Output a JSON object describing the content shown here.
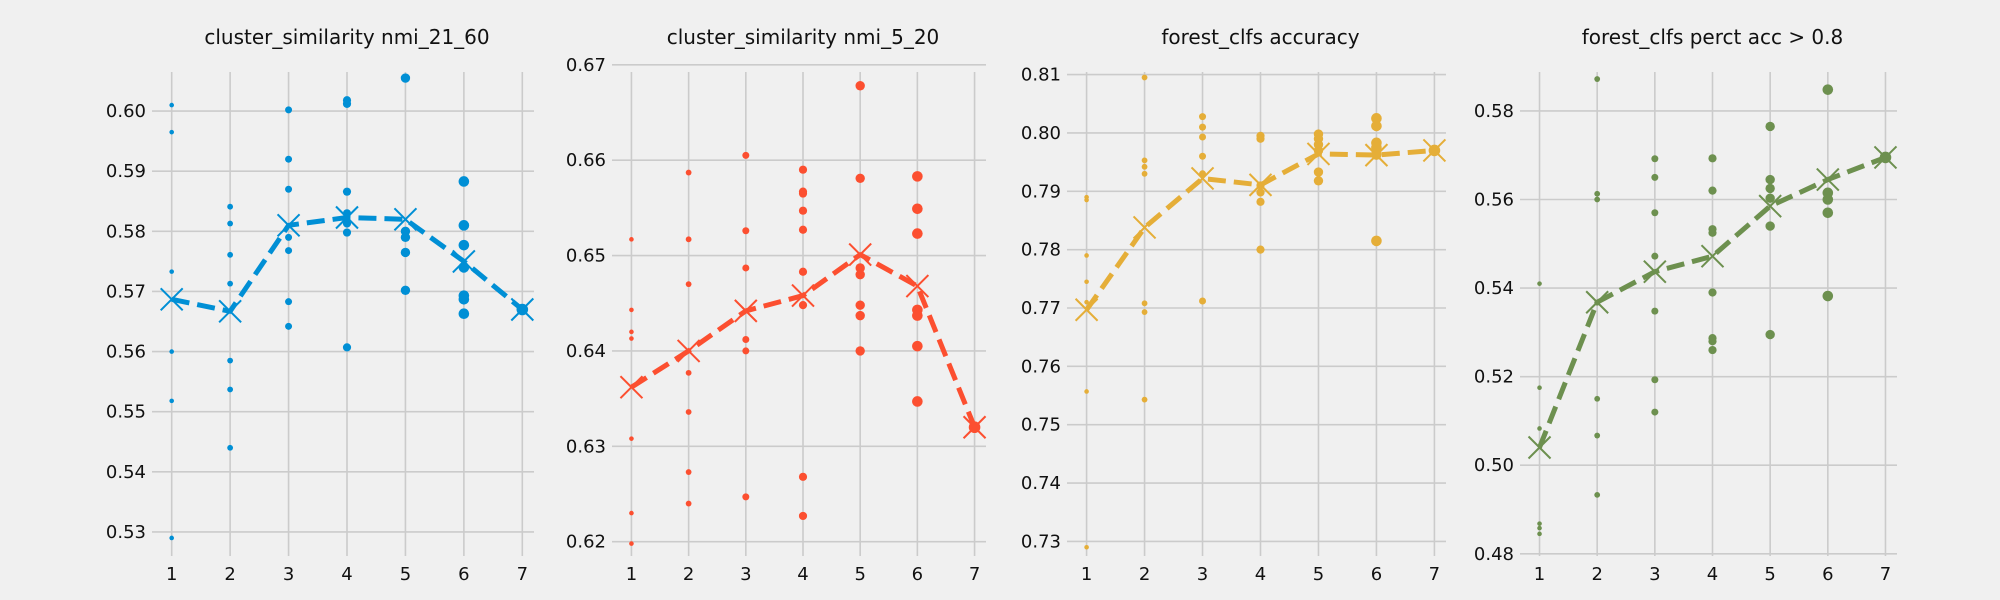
{
  "chart_data": [
    {
      "type": "line",
      "title": "cluster_similarity nmi_21_60",
      "color": "#008fd5",
      "xlim": [
        0.8,
        7.2
      ],
      "ylim": [
        0.526,
        0.6085
      ],
      "xticks": [
        1,
        2,
        3,
        4,
        5,
        6,
        7
      ],
      "yticks": [
        0.53,
        0.54,
        0.55,
        0.56,
        0.57,
        0.58,
        0.59,
        0.6
      ],
      "ytick_labels": [
        "0.53",
        "0.54",
        "0.55",
        "0.56",
        "0.57",
        "0.58",
        "0.59",
        "0.60"
      ],
      "mean": {
        "x": [
          1,
          2,
          3,
          4,
          5,
          6,
          7
        ],
        "y": [
          0.5687,
          0.5667,
          0.581,
          0.5823,
          0.582,
          0.575,
          0.567
        ]
      },
      "points": [
        {
          "x": 1,
          "y": 0.601,
          "s": 1
        },
        {
          "x": 1,
          "y": 0.5965,
          "s": 1
        },
        {
          "x": 1,
          "y": 0.5733,
          "s": 1
        },
        {
          "x": 1,
          "y": 0.56,
          "s": 1
        },
        {
          "x": 1,
          "y": 0.5518,
          "s": 1
        },
        {
          "x": 1,
          "y": 0.529,
          "s": 1
        },
        {
          "x": 2,
          "y": 0.5841,
          "s": 2
        },
        {
          "x": 2,
          "y": 0.5813,
          "s": 2
        },
        {
          "x": 2,
          "y": 0.5761,
          "s": 2
        },
        {
          "x": 2,
          "y": 0.5713,
          "s": 2
        },
        {
          "x": 2,
          "y": 0.5585,
          "s": 2
        },
        {
          "x": 2,
          "y": 0.5537,
          "s": 2
        },
        {
          "x": 2,
          "y": 0.544,
          "s": 2
        },
        {
          "x": 3,
          "y": 0.6002,
          "s": 3
        },
        {
          "x": 3,
          "y": 0.592,
          "s": 3
        },
        {
          "x": 3,
          "y": 0.587,
          "s": 3
        },
        {
          "x": 3,
          "y": 0.579,
          "s": 3
        },
        {
          "x": 3,
          "y": 0.5768,
          "s": 3
        },
        {
          "x": 3,
          "y": 0.5683,
          "s": 3
        },
        {
          "x": 3,
          "y": 0.5642,
          "s": 3
        },
        {
          "x": 4,
          "y": 0.6018,
          "s": 4
        },
        {
          "x": 4,
          "y": 0.6012,
          "s": 4
        },
        {
          "x": 4,
          "y": 0.5866,
          "s": 4
        },
        {
          "x": 4,
          "y": 0.583,
          "s": 4
        },
        {
          "x": 4,
          "y": 0.5813,
          "s": 4
        },
        {
          "x": 4,
          "y": 0.5798,
          "s": 4
        },
        {
          "x": 4,
          "y": 0.5607,
          "s": 4
        },
        {
          "x": 5,
          "y": 0.6055,
          "s": 5
        },
        {
          "x": 5,
          "y": 0.58,
          "s": 5
        },
        {
          "x": 5,
          "y": 0.579,
          "s": 5
        },
        {
          "x": 5,
          "y": 0.5765,
          "s": 5
        },
        {
          "x": 5,
          "y": 0.5702,
          "s": 5
        },
        {
          "x": 6,
          "y": 0.5883,
          "s": 6
        },
        {
          "x": 6,
          "y": 0.581,
          "s": 6
        },
        {
          "x": 6,
          "y": 0.5777,
          "s": 6
        },
        {
          "x": 6,
          "y": 0.574,
          "s": 6
        },
        {
          "x": 6,
          "y": 0.5693,
          "s": 6
        },
        {
          "x": 6,
          "y": 0.5687,
          "s": 6
        },
        {
          "x": 6,
          "y": 0.5663,
          "s": 6
        },
        {
          "x": 7,
          "y": 0.567,
          "s": 7
        }
      ]
    },
    {
      "type": "line",
      "title": "cluster_similarity nmi_5_20",
      "color": "#fc4f30",
      "xlim": [
        0.8,
        7.2
      ],
      "ylim": [
        0.6185,
        0.6705
      ],
      "xticks": [
        1,
        2,
        3,
        4,
        5,
        6,
        7
      ],
      "yticks": [
        0.62,
        0.63,
        0.64,
        0.65,
        0.66,
        0.67
      ],
      "ytick_labels": [
        "0.62",
        "0.63",
        "0.64",
        "0.65",
        "0.66",
        "0.67"
      ],
      "mean": {
        "x": [
          1,
          2,
          3,
          4,
          5,
          6,
          7
        ],
        "y": [
          0.6362,
          0.64,
          0.6442,
          0.6458,
          0.6501,
          0.6468,
          0.632
        ]
      },
      "points": [
        {
          "x": 1,
          "y": 0.6517,
          "s": 1
        },
        {
          "x": 1,
          "y": 0.6443,
          "s": 1
        },
        {
          "x": 1,
          "y": 0.642,
          "s": 1
        },
        {
          "x": 1,
          "y": 0.6413,
          "s": 1
        },
        {
          "x": 1,
          "y": 0.6308,
          "s": 1
        },
        {
          "x": 1,
          "y": 0.623,
          "s": 1
        },
        {
          "x": 1,
          "y": 0.6198,
          "s": 1
        },
        {
          "x": 2,
          "y": 0.6587,
          "s": 2
        },
        {
          "x": 2,
          "y": 0.6517,
          "s": 2
        },
        {
          "x": 2,
          "y": 0.647,
          "s": 2
        },
        {
          "x": 2,
          "y": 0.6377,
          "s": 2
        },
        {
          "x": 2,
          "y": 0.6336,
          "s": 2
        },
        {
          "x": 2,
          "y": 0.6273,
          "s": 2
        },
        {
          "x": 2,
          "y": 0.624,
          "s": 2
        },
        {
          "x": 3,
          "y": 0.6605,
          "s": 3
        },
        {
          "x": 3,
          "y": 0.6526,
          "s": 3
        },
        {
          "x": 3,
          "y": 0.6487,
          "s": 3
        },
        {
          "x": 3,
          "y": 0.6412,
          "s": 3
        },
        {
          "x": 3,
          "y": 0.64,
          "s": 3
        },
        {
          "x": 3,
          "y": 0.6247,
          "s": 3
        },
        {
          "x": 4,
          "y": 0.659,
          "s": 4
        },
        {
          "x": 4,
          "y": 0.6567,
          "s": 4
        },
        {
          "x": 4,
          "y": 0.6565,
          "s": 4
        },
        {
          "x": 4,
          "y": 0.6547,
          "s": 4
        },
        {
          "x": 4,
          "y": 0.6527,
          "s": 4
        },
        {
          "x": 4,
          "y": 0.6483,
          "s": 4
        },
        {
          "x": 4,
          "y": 0.6448,
          "s": 4
        },
        {
          "x": 4,
          "y": 0.6268,
          "s": 4
        },
        {
          "x": 4,
          "y": 0.6227,
          "s": 4
        },
        {
          "x": 5,
          "y": 0.6678,
          "s": 5
        },
        {
          "x": 5,
          "y": 0.6581,
          "s": 5
        },
        {
          "x": 5,
          "y": 0.6487,
          "s": 5
        },
        {
          "x": 5,
          "y": 0.648,
          "s": 5
        },
        {
          "x": 5,
          "y": 0.6448,
          "s": 5
        },
        {
          "x": 5,
          "y": 0.6437,
          "s": 5
        },
        {
          "x": 5,
          "y": 0.64,
          "s": 5
        },
        {
          "x": 6,
          "y": 0.6583,
          "s": 6
        },
        {
          "x": 6,
          "y": 0.6549,
          "s": 6
        },
        {
          "x": 6,
          "y": 0.6523,
          "s": 6
        },
        {
          "x": 6,
          "y": 0.6443,
          "s": 6
        },
        {
          "x": 6,
          "y": 0.6437,
          "s": 6
        },
        {
          "x": 6,
          "y": 0.6405,
          "s": 6
        },
        {
          "x": 6,
          "y": 0.6347,
          "s": 6
        },
        {
          "x": 7,
          "y": 0.632,
          "s": 7
        }
      ]
    },
    {
      "type": "line",
      "title": "forest_clfs accuracy",
      "color": "#e5ae38",
      "xlim": [
        0.8,
        7.2
      ],
      "ylim": [
        0.7275,
        0.8125
      ],
      "xticks": [
        1,
        2,
        3,
        4,
        5,
        6,
        7
      ],
      "yticks": [
        0.73,
        0.74,
        0.75,
        0.76,
        0.77,
        0.78,
        0.79,
        0.8,
        0.81
      ],
      "ytick_labels": [
        "0.73",
        "0.74",
        "0.75",
        "0.76",
        "0.77",
        "0.78",
        "0.79",
        "0.80",
        "0.81"
      ],
      "mean": {
        "x": [
          1,
          2,
          3,
          4,
          5,
          6,
          7
        ],
        "y": [
          0.7697,
          0.7838,
          0.7922,
          0.7911,
          0.7964,
          0.7962,
          0.797
        ]
      },
      "points": [
        {
          "x": 1,
          "y": 0.789,
          "s": 1
        },
        {
          "x": 1,
          "y": 0.7885,
          "s": 1
        },
        {
          "x": 1,
          "y": 0.779,
          "s": 1
        },
        {
          "x": 1,
          "y": 0.7745,
          "s": 1
        },
        {
          "x": 1,
          "y": 0.771,
          "s": 1
        },
        {
          "x": 1,
          "y": 0.7557,
          "s": 1
        },
        {
          "x": 1,
          "y": 0.729,
          "s": 1
        },
        {
          "x": 2,
          "y": 0.8095,
          "s": 2
        },
        {
          "x": 2,
          "y": 0.7953,
          "s": 2
        },
        {
          "x": 2,
          "y": 0.7942,
          "s": 2
        },
        {
          "x": 2,
          "y": 0.793,
          "s": 2
        },
        {
          "x": 2,
          "y": 0.7708,
          "s": 2
        },
        {
          "x": 2,
          "y": 0.7693,
          "s": 2
        },
        {
          "x": 2,
          "y": 0.7543,
          "s": 2
        },
        {
          "x": 3,
          "y": 0.8028,
          "s": 3
        },
        {
          "x": 3,
          "y": 0.801,
          "s": 3
        },
        {
          "x": 3,
          "y": 0.7993,
          "s": 3
        },
        {
          "x": 3,
          "y": 0.796,
          "s": 3
        },
        {
          "x": 3,
          "y": 0.793,
          "s": 3
        },
        {
          "x": 3,
          "y": 0.7712,
          "s": 3
        },
        {
          "x": 4,
          "y": 0.7995,
          "s": 4
        },
        {
          "x": 4,
          "y": 0.799,
          "s": 4
        },
        {
          "x": 4,
          "y": 0.791,
          "s": 4
        },
        {
          "x": 4,
          "y": 0.7898,
          "s": 4
        },
        {
          "x": 4,
          "y": 0.7882,
          "s": 4
        },
        {
          "x": 4,
          "y": 0.78,
          "s": 4
        },
        {
          "x": 5,
          "y": 0.7998,
          "s": 5
        },
        {
          "x": 5,
          "y": 0.799,
          "s": 5
        },
        {
          "x": 5,
          "y": 0.798,
          "s": 5
        },
        {
          "x": 5,
          "y": 0.797,
          "s": 5
        },
        {
          "x": 5,
          "y": 0.7933,
          "s": 5
        },
        {
          "x": 5,
          "y": 0.7918,
          "s": 5
        },
        {
          "x": 6,
          "y": 0.8025,
          "s": 6
        },
        {
          "x": 6,
          "y": 0.8012,
          "s": 6
        },
        {
          "x": 6,
          "y": 0.7983,
          "s": 6
        },
        {
          "x": 6,
          "y": 0.7975,
          "s": 6
        },
        {
          "x": 6,
          "y": 0.7963,
          "s": 6
        },
        {
          "x": 6,
          "y": 0.7815,
          "s": 6
        },
        {
          "x": 7,
          "y": 0.797,
          "s": 7
        }
      ]
    },
    {
      "type": "line",
      "title": "forest_clfs perct acc > 0.8",
      "color": "#6d904f",
      "xlim": [
        0.8,
        7.2
      ],
      "ylim": [
        0.4795,
        0.5915
      ],
      "xticks": [
        1,
        2,
        3,
        4,
        5,
        6,
        7
      ],
      "yticks": [
        0.48,
        0.5,
        0.52,
        0.54,
        0.56,
        0.58
      ],
      "ytick_labels": [
        "0.48",
        "0.50",
        "0.52",
        "0.54",
        "0.56",
        "0.58"
      ],
      "mean": {
        "x": [
          1,
          2,
          3,
          4,
          5,
          6,
          7
        ],
        "y": [
          0.504,
          0.5368,
          0.5437,
          0.5472,
          0.5585,
          0.5645,
          0.5695
        ]
      },
      "points": [
        {
          "x": 1,
          "y": 0.541,
          "s": 1
        },
        {
          "x": 1,
          "y": 0.5175,
          "s": 1
        },
        {
          "x": 1,
          "y": 0.5083,
          "s": 1
        },
        {
          "x": 1,
          "y": 0.4868,
          "s": 1
        },
        {
          "x": 1,
          "y": 0.4858,
          "s": 1
        },
        {
          "x": 1,
          "y": 0.4845,
          "s": 1
        },
        {
          "x": 2,
          "y": 0.5872,
          "s": 2
        },
        {
          "x": 2,
          "y": 0.5613,
          "s": 2
        },
        {
          "x": 2,
          "y": 0.56,
          "s": 2
        },
        {
          "x": 2,
          "y": 0.5367,
          "s": 2
        },
        {
          "x": 2,
          "y": 0.515,
          "s": 2
        },
        {
          "x": 2,
          "y": 0.5067,
          "s": 2
        },
        {
          "x": 2,
          "y": 0.4933,
          "s": 2
        },
        {
          "x": 3,
          "y": 0.5692,
          "s": 3
        },
        {
          "x": 3,
          "y": 0.565,
          "s": 3
        },
        {
          "x": 3,
          "y": 0.557,
          "s": 3
        },
        {
          "x": 3,
          "y": 0.5472,
          "s": 3
        },
        {
          "x": 3,
          "y": 0.5348,
          "s": 3
        },
        {
          "x": 3,
          "y": 0.5193,
          "s": 3
        },
        {
          "x": 3,
          "y": 0.512,
          "s": 3
        },
        {
          "x": 4,
          "y": 0.5693,
          "s": 4
        },
        {
          "x": 4,
          "y": 0.562,
          "s": 4
        },
        {
          "x": 4,
          "y": 0.5533,
          "s": 4
        },
        {
          "x": 4,
          "y": 0.5525,
          "s": 4
        },
        {
          "x": 4,
          "y": 0.539,
          "s": 4
        },
        {
          "x": 4,
          "y": 0.5287,
          "s": 4
        },
        {
          "x": 4,
          "y": 0.528,
          "s": 4
        },
        {
          "x": 4,
          "y": 0.526,
          "s": 4
        },
        {
          "x": 5,
          "y": 0.5765,
          "s": 5
        },
        {
          "x": 5,
          "y": 0.5645,
          "s": 5
        },
        {
          "x": 5,
          "y": 0.5625,
          "s": 5
        },
        {
          "x": 5,
          "y": 0.5603,
          "s": 5
        },
        {
          "x": 5,
          "y": 0.554,
          "s": 5
        },
        {
          "x": 5,
          "y": 0.5295,
          "s": 5
        },
        {
          "x": 6,
          "y": 0.5848,
          "s": 6
        },
        {
          "x": 6,
          "y": 0.5615,
          "s": 6
        },
        {
          "x": 6,
          "y": 0.56,
          "s": 6
        },
        {
          "x": 6,
          "y": 0.557,
          "s": 6
        },
        {
          "x": 6,
          "y": 0.5382,
          "s": 6
        },
        {
          "x": 7,
          "y": 0.5695,
          "s": 7
        }
      ]
    }
  ]
}
